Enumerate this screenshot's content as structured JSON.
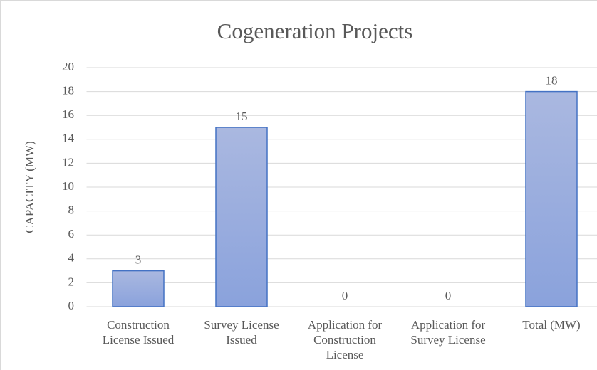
{
  "chart_data": {
    "type": "bar",
    "title": "Cogeneration Projects",
    "y_label": "CAPACITY (MW)",
    "categories": [
      "Construction License Issued",
      "Survey License Issued",
      "Application for Construction License",
      "Application for Survey License",
      "Total (MW)"
    ],
    "values": [
      3,
      15,
      0,
      0,
      18
    ],
    "color": "#4472c4",
    "ylim": [
      0,
      20
    ],
    "yticks": [
      0,
      2,
      4,
      6,
      8,
      10,
      12,
      14,
      16,
      18,
      20
    ],
    "grid": true
  }
}
